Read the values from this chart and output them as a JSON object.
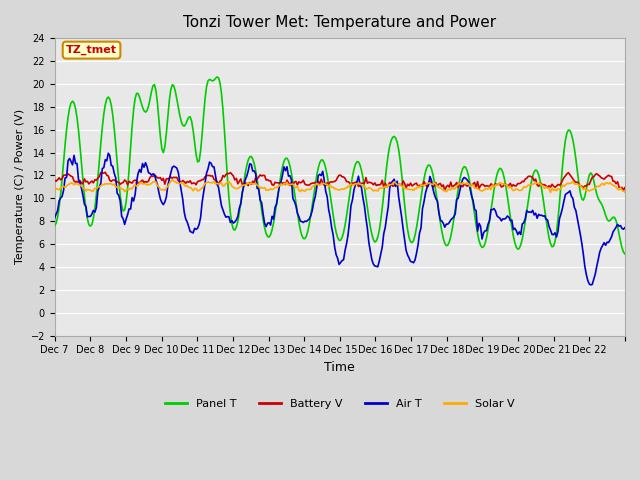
{
  "title": "Tonzi Tower Met: Temperature and Power",
  "xlabel": "Time",
  "ylabel": "Temperature (C) / Power (V)",
  "ylim": [
    -2,
    24
  ],
  "yticks": [
    -2,
    0,
    2,
    4,
    6,
    8,
    10,
    12,
    14,
    16,
    18,
    20,
    22,
    24
  ],
  "x_tick_labels": [
    "Dec 7",
    "Dec 8",
    "Dec 9",
    "Dec 10",
    "Dec 11",
    "Dec 12",
    "Dec 13",
    "Dec 14",
    "Dec 15",
    "Dec 16",
    "Dec 17",
    "Dec 18",
    "Dec 19",
    "Dec 20",
    "Dec 21",
    "Dec 22",
    ""
  ],
  "annotation_text": "TZ_tmet",
  "annotation_color": "#cc0000",
  "annotation_bg": "#ffffcc",
  "annotation_border": "#cc8800",
  "plot_bg": "#e8e8e8",
  "fig_bg": "#d8d8d8",
  "grid_color": "#ffffff",
  "series_Panel_T_color": "#00cc00",
  "series_Battery_V_color": "#cc0000",
  "series_Air_T_color": "#0000cc",
  "series_Solar_V_color": "#ffaa00",
  "series_lw": 1.2,
  "n_days": 16
}
